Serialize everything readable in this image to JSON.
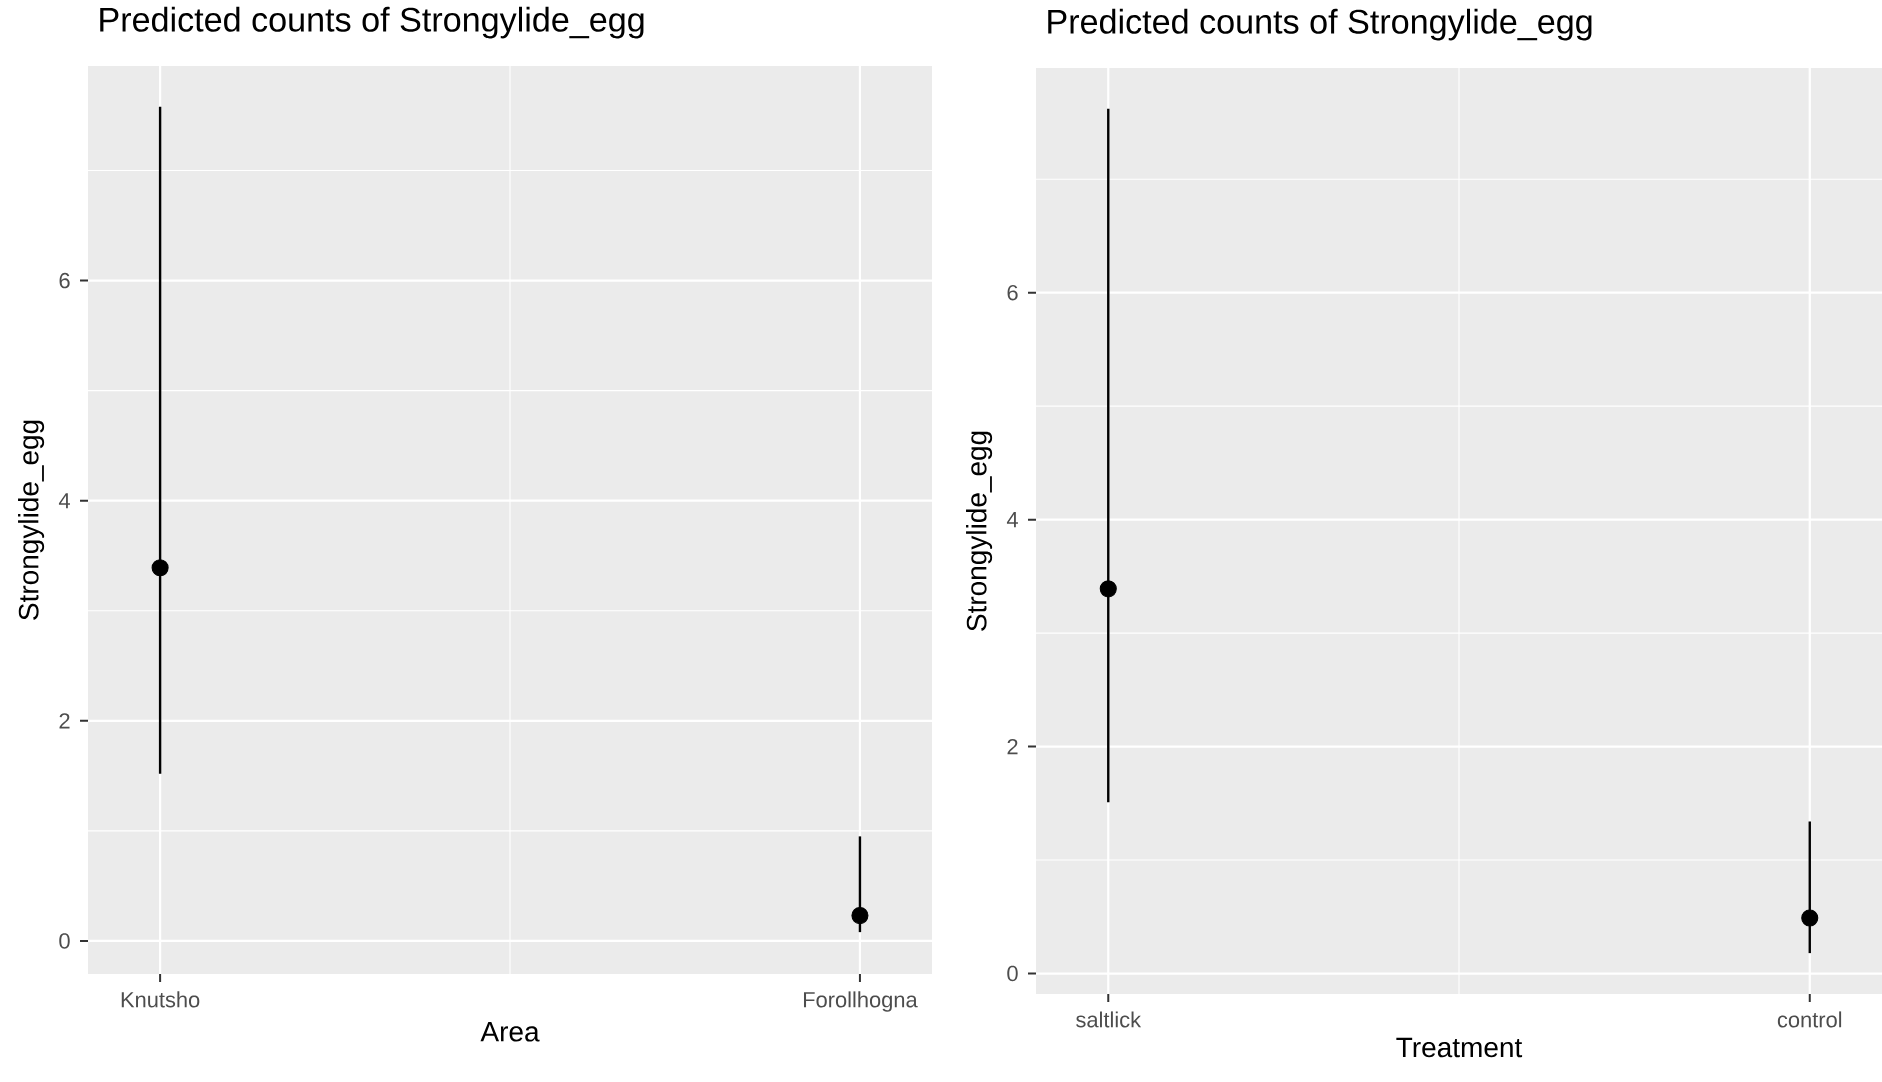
{
  "chart_data": [
    {
      "type": "scatter",
      "title": "Predicted counts of Strongylide_egg",
      "xlabel": "Area",
      "ylabel": "Strongylide_egg",
      "categories": [
        "Knutsho",
        "Forollhogna"
      ],
      "values": [
        3.39,
        0.23
      ],
      "errors": [
        [
          1.52,
          7.58
        ],
        [
          0.08,
          0.95
        ]
      ],
      "color": "#000000",
      "marker": "circle",
      "ylim": [
        -0.3,
        7.95
      ],
      "yticks": [
        0,
        2,
        4,
        6
      ],
      "grid": true
    },
    {
      "type": "scatter",
      "title": "Predicted counts of Strongylide_egg",
      "xlabel": "Treatment",
      "ylabel": "Strongylide_egg",
      "categories": [
        "saltlick",
        "control"
      ],
      "values": [
        3.39,
        0.49
      ],
      "errors": [
        [
          1.51,
          7.62
        ],
        [
          0.18,
          1.34
        ]
      ],
      "color": "#000000",
      "marker": "circle",
      "ylim": [
        -0.18,
        7.98
      ],
      "yticks": [
        0,
        2,
        4,
        6
      ],
      "grid": true
    }
  ]
}
